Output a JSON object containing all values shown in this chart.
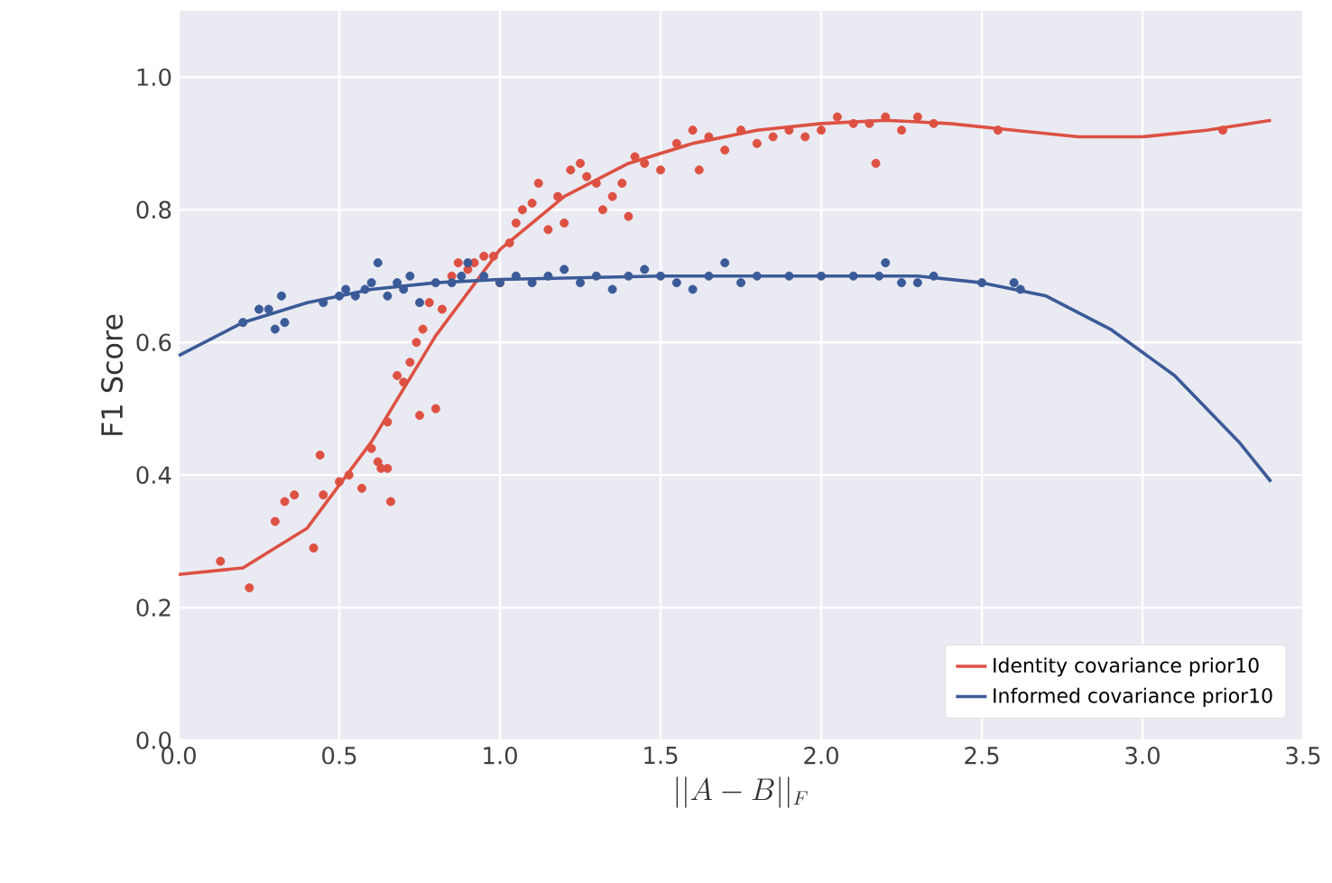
{
  "chart_data": {
    "type": "scatter",
    "xlabel": "||A-B||_F",
    "ylabel": "F1 Score",
    "xlim": [
      0,
      3.5
    ],
    "ylim": [
      0,
      1.1
    ],
    "xticks": [
      {
        "value": 0,
        "label": "0.0"
      },
      {
        "value": 0.5,
        "label": "0.5"
      },
      {
        "value": 1,
        "label": "1.0"
      },
      {
        "value": 1.5,
        "label": "1.5"
      },
      {
        "value": 2,
        "label": "2.0"
      },
      {
        "value": 2.5,
        "label": "2.5"
      },
      {
        "value": 3,
        "label": "3.0"
      },
      {
        "value": 3.5,
        "label": "3.5"
      }
    ],
    "yticks": [
      {
        "value": 0,
        "label": "0.0"
      },
      {
        "value": 0.2,
        "label": "0.2"
      },
      {
        "value": 0.4,
        "label": "0.4"
      },
      {
        "value": 0.6,
        "label": "0.6"
      },
      {
        "value": 0.8,
        "label": "0.8"
      },
      {
        "value": 1,
        "label": "1.0"
      }
    ],
    "grid": true,
    "legend": "bottom right",
    "series": [
      {
        "type": "scatter",
        "marker": "circle",
        "color": "#dd5143",
        "x": [
          0.13,
          0.22,
          0.3,
          0.33,
          0.36,
          0.42,
          0.44,
          0.45,
          0.5,
          0.53,
          0.57,
          0.6,
          0.62,
          0.63,
          0.65,
          0.65,
          0.66,
          0.68,
          0.7,
          0.72,
          0.74,
          0.75,
          0.76,
          0.78,
          0.8,
          0.82,
          0.85,
          0.87,
          0.9,
          0.92,
          0.95,
          0.98,
          1.0,
          1.03,
          1.05,
          1.07,
          1.1,
          1.12,
          1.15,
          1.18,
          1.2,
          1.22,
          1.25,
          1.27,
          1.3,
          1.32,
          1.35,
          1.38,
          1.4,
          1.42,
          1.45,
          1.5,
          1.55,
          1.6,
          1.62,
          1.65,
          1.7,
          1.75,
          1.8,
          1.85,
          1.9,
          1.95,
          2.0,
          2.05,
          2.1,
          2.15,
          2.17,
          2.2,
          2.25,
          2.3,
          2.35,
          2.55,
          3.25
        ],
        "values": [
          0.27,
          0.23,
          0.33,
          0.36,
          0.37,
          0.29,
          0.43,
          0.37,
          0.39,
          0.4,
          0.38,
          0.44,
          0.42,
          0.41,
          0.41,
          0.48,
          0.36,
          0.55,
          0.54,
          0.57,
          0.6,
          0.49,
          0.62,
          0.66,
          0.5,
          0.65,
          0.7,
          0.72,
          0.71,
          0.72,
          0.73,
          0.73,
          0.69,
          0.75,
          0.78,
          0.8,
          0.81,
          0.84,
          0.77,
          0.82,
          0.78,
          0.86,
          0.87,
          0.85,
          0.84,
          0.8,
          0.82,
          0.84,
          0.79,
          0.88,
          0.87,
          0.86,
          0.9,
          0.92,
          0.86,
          0.91,
          0.89,
          0.92,
          0.9,
          0.91,
          0.92,
          0.91,
          0.92,
          0.94,
          0.93,
          0.93,
          0.87,
          0.94,
          0.92,
          0.94,
          0.93,
          0.92,
          0.92
        ]
      },
      {
        "type": "scatter",
        "marker": "circle",
        "color": "#3b5b98",
        "x": [
          0.2,
          0.25,
          0.28,
          0.3,
          0.32,
          0.33,
          0.45,
          0.5,
          0.52,
          0.55,
          0.58,
          0.6,
          0.62,
          0.65,
          0.68,
          0.7,
          0.72,
          0.75,
          0.8,
          0.85,
          0.88,
          0.9,
          0.95,
          1.0,
          1.05,
          1.1,
          1.15,
          1.2,
          1.25,
          1.3,
          1.35,
          1.4,
          1.45,
          1.5,
          1.55,
          1.6,
          1.65,
          1.7,
          1.75,
          1.8,
          1.9,
          2.0,
          2.1,
          2.18,
          2.2,
          2.25,
          2.3,
          2.35,
          2.5,
          2.6,
          2.62
        ],
        "values": [
          0.63,
          0.65,
          0.65,
          0.62,
          0.67,
          0.63,
          0.66,
          0.67,
          0.68,
          0.67,
          0.68,
          0.69,
          0.72,
          0.67,
          0.69,
          0.68,
          0.7,
          0.66,
          0.69,
          0.69,
          0.7,
          0.72,
          0.7,
          0.69,
          0.7,
          0.69,
          0.7,
          0.71,
          0.69,
          0.7,
          0.68,
          0.7,
          0.71,
          0.7,
          0.69,
          0.68,
          0.7,
          0.72,
          0.69,
          0.7,
          0.7,
          0.7,
          0.7,
          0.7,
          0.72,
          0.69,
          0.69,
          0.7,
          0.69,
          0.69,
          0.68
        ]
      },
      {
        "type": "line",
        "name": "Identity covariance prior10",
        "color": "#dd5143",
        "x": [
          0,
          0.2,
          0.4,
          0.6,
          0.8,
          1.0,
          1.2,
          1.4,
          1.6,
          1.8,
          2.0,
          2.2,
          2.4,
          2.6,
          2.8,
          3.0,
          3.2,
          3.4
        ],
        "values": [
          0.25,
          0.26,
          0.32,
          0.45,
          0.61,
          0.74,
          0.82,
          0.87,
          0.9,
          0.92,
          0.93,
          0.935,
          0.93,
          0.92,
          0.91,
          0.91,
          0.92,
          0.935
        ]
      },
      {
        "type": "line",
        "name": "Informed covariance prior10",
        "color": "#3b5b98",
        "x": [
          0,
          0.2,
          0.4,
          0.6,
          0.8,
          1.0,
          1.5,
          2.0,
          2.3,
          2.5,
          2.7,
          2.9,
          3.1,
          3.3,
          3.4
        ],
        "values": [
          0.58,
          0.63,
          0.66,
          0.68,
          0.69,
          0.695,
          0.7,
          0.7,
          0.7,
          0.69,
          0.67,
          0.62,
          0.55,
          0.45,
          0.39
        ]
      }
    ]
  }
}
